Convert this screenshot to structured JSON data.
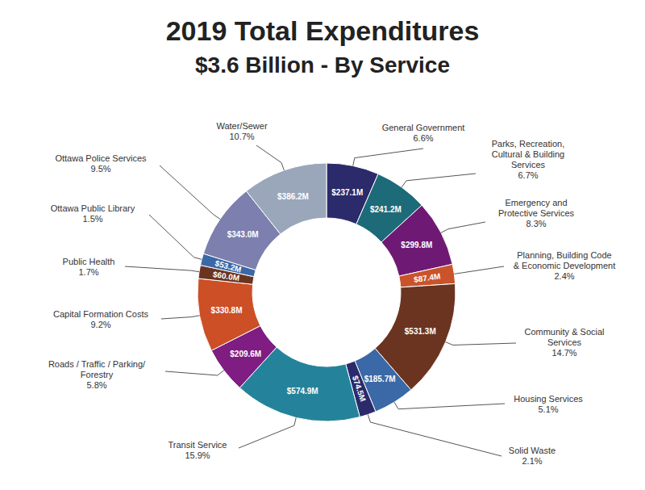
{
  "chart_data": {
    "type": "donut",
    "title": "2019 Total Expenditures",
    "subtitle": "$3.6 Billion - By Service",
    "categories": [
      "General Government",
      "Parks, Recreation, Cultural & Building Services",
      "Emergency and Protective Services",
      "Planning, Building Code & Economic Development",
      "Community & Social Services",
      "Housing Services",
      "Solid Waste",
      "Transit Service",
      "Roads / Traffic / Parking/ Forestry",
      "Capital Formation Costs",
      "Public Health",
      "Ottawa Public Library",
      "Ottawa Police Services",
      "Water/Sewer"
    ],
    "values": [
      237.1,
      241.2,
      299.8,
      87.4,
      531.3,
      185.7,
      74.5,
      574.9,
      209.6,
      330.8,
      60.0,
      53.2,
      343.0,
      386.2
    ],
    "value_labels": [
      "$237.1M",
      "$241.2M",
      "$299.8M",
      "$87.4M",
      "$531.3M",
      "$185.7M",
      "$74.5M",
      "$574.9M",
      "$209.6M",
      "$330.8M",
      "$60.0M",
      "$53.2M",
      "$343.0M",
      "$386.2M"
    ],
    "percent_labels": [
      "6.6%",
      "6.7%",
      "8.3%",
      "2.4%",
      "14.7%",
      "5.1%",
      "2.1%",
      "15.9%",
      "5.8%",
      "9.2%",
      "1.7%",
      "1.5%",
      "9.5%",
      "10.7%"
    ],
    "colors": [
      "#2b2a6b",
      "#1d6b78",
      "#6e1a74",
      "#c9532b",
      "#6b3420",
      "#3b68a6",
      "#2b2a6b",
      "#24839b",
      "#7f1d82",
      "#cc4f26",
      "#6b3420",
      "#3b68a6",
      "#7d7fae",
      "#9aa7bb"
    ],
    "data_labels": true
  }
}
